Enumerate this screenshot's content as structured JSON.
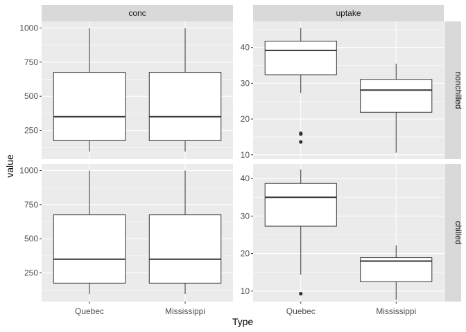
{
  "chart_data": {
    "type": "box",
    "xlabel": "Type",
    "ylabel": "value",
    "categories": [
      "Quebec",
      "Mississippi"
    ],
    "facet_columns": [
      "conc",
      "uptake"
    ],
    "facet_rows": [
      "nonchilled",
      "chilled"
    ],
    "grid": true,
    "panels": [
      {
        "column": "conc",
        "row": "nonchilled",
        "ylim": [
          40,
          1048
        ],
        "yticks": [
          250,
          500,
          750,
          1000
        ],
        "boxes": [
          {
            "category": "Quebec",
            "min": 95,
            "q1": 175,
            "median": 350,
            "q3": 675,
            "max": 1000,
            "outliers": []
          },
          {
            "category": "Mississippi",
            "min": 95,
            "q1": 175,
            "median": 350,
            "q3": 675,
            "max": 1000,
            "outliers": []
          }
        ]
      },
      {
        "column": "uptake",
        "row": "nonchilled",
        "ylim": [
          8.8,
          47.3
        ],
        "yticks": [
          10,
          20,
          30,
          40
        ],
        "boxes": [
          {
            "category": "Quebec",
            "min": 27.3,
            "q1": 32.4,
            "median": 39.2,
            "q3": 41.8,
            "max": 45.5,
            "outliers": [
              16.0,
              15.8,
              13.6
            ]
          },
          {
            "category": "Mississippi",
            "min": 10.6,
            "q1": 21.9,
            "median": 28.1,
            "q3": 31.1,
            "max": 35.5,
            "outliers": []
          }
        ]
      },
      {
        "column": "conc",
        "row": "chilled",
        "ylim": [
          40,
          1048
        ],
        "yticks": [
          250,
          500,
          750,
          1000
        ],
        "boxes": [
          {
            "category": "Quebec",
            "min": 95,
            "q1": 175,
            "median": 350,
            "q3": 675,
            "max": 1000,
            "outliers": []
          },
          {
            "category": "Mississippi",
            "min": 95,
            "q1": 175,
            "median": 350,
            "q3": 675,
            "max": 1000,
            "outliers": []
          }
        ]
      },
      {
        "column": "uptake",
        "row": "chilled",
        "ylim": [
          7.2,
          43.9
        ],
        "yticks": [
          10,
          20,
          30,
          40
        ],
        "boxes": [
          {
            "category": "Quebec",
            "min": 14.4,
            "q1": 27.3,
            "median": 35.0,
            "q3": 38.7,
            "max": 42.4,
            "outliers": [
              9.3
            ]
          },
          {
            "category": "Mississippi",
            "min": 7.7,
            "q1": 12.5,
            "median": 18.0,
            "q3": 18.9,
            "max": 22.2,
            "outliers": []
          }
        ]
      }
    ]
  },
  "colors": {
    "panel_background": "#ebebeb",
    "strip_background": "#d9d9d9",
    "grid_major": "#ffffff",
    "box_fill": "#ffffff",
    "box_line": "#333333",
    "outlier": "#333333",
    "tick_text": "#4d4d4d"
  }
}
